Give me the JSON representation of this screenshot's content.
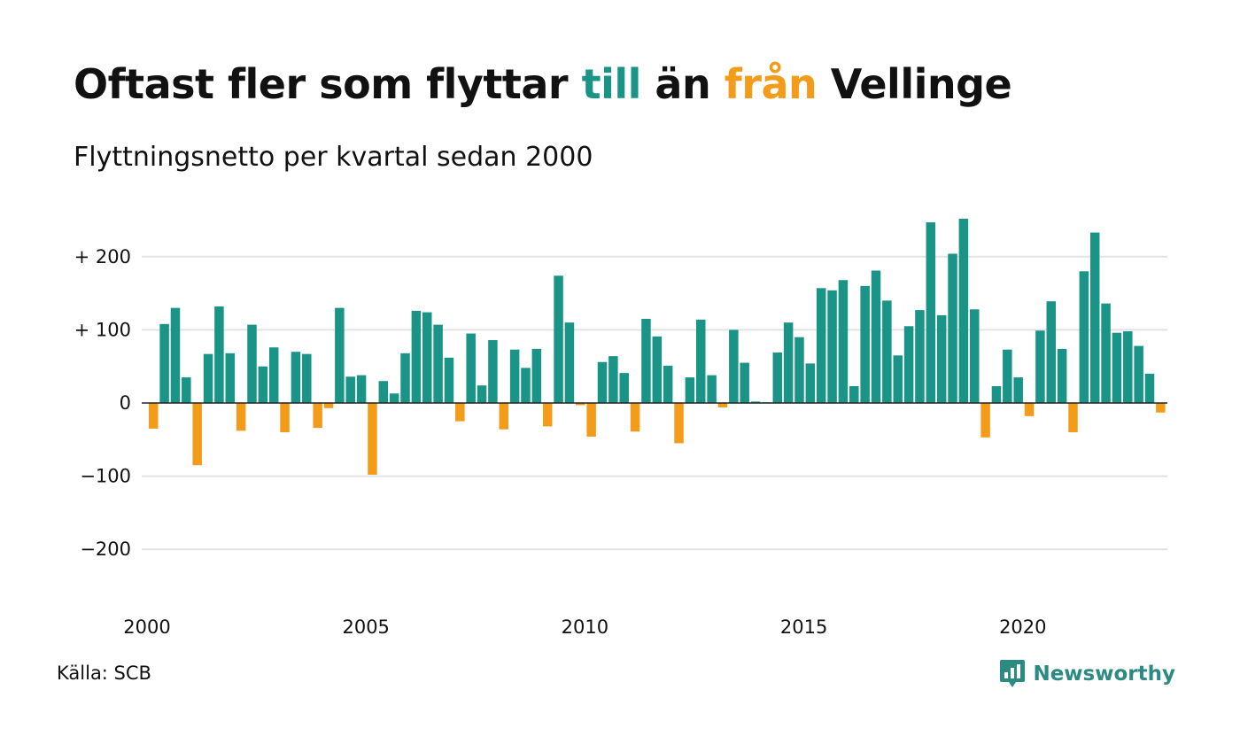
{
  "title": {
    "part1": "Oftast fler som flyttar ",
    "accent1": "till",
    "part2": " än ",
    "accent2": "från",
    "part3": " Vellinge"
  },
  "subtitle": "Flyttningsnetto per kvartal sedan 2000",
  "source": "Källa: SCB",
  "brand": {
    "name": "Newsworthy",
    "icon": "chart-bubble-icon"
  },
  "colors": {
    "positive": "#1a9486",
    "negative": "#f39c1a",
    "grid": "#e2e2e2",
    "accent_till": "#1a9486",
    "accent_fran": "#f39c1a"
  },
  "chart_data": {
    "type": "bar",
    "x_label_interval_quarters": 20,
    "x_ticks": [
      "2000",
      "2005",
      "2010",
      "2015",
      "2020"
    ],
    "y_ticks": [
      {
        "value": 200,
        "label": "+ 200"
      },
      {
        "value": 100,
        "label": "+ 100"
      },
      {
        "value": 0,
        "label": "0"
      },
      {
        "value": -100,
        "label": "−100"
      },
      {
        "value": -200,
        "label": "−200"
      }
    ],
    "ylim": [
      -250,
      260
    ],
    "grid": true,
    "start": "2000 Q1",
    "values": [
      -35,
      108,
      130,
      35,
      -85,
      67,
      132,
      68,
      -38,
      107,
      50,
      76,
      -40,
      70,
      67,
      -34,
      -7,
      130,
      36,
      38,
      -98,
      30,
      13,
      68,
      126,
      124,
      107,
      62,
      -25,
      95,
      24,
      86,
      -36,
      73,
      48,
      74,
      -32,
      174,
      110,
      -3,
      -46,
      56,
      64,
      41,
      -39,
      115,
      91,
      51,
      -55,
      35,
      114,
      38,
      -6,
      100,
      55,
      2,
      1,
      69,
      110,
      90,
      54,
      157,
      154,
      168,
      23,
      160,
      181,
      140,
      65,
      105,
      127,
      247,
      120,
      204,
      252,
      128,
      -47,
      23,
      73,
      35,
      -18,
      99,
      139,
      74,
      -40,
      180,
      233,
      136,
      96,
      98,
      78,
      40,
      -13
    ]
  }
}
